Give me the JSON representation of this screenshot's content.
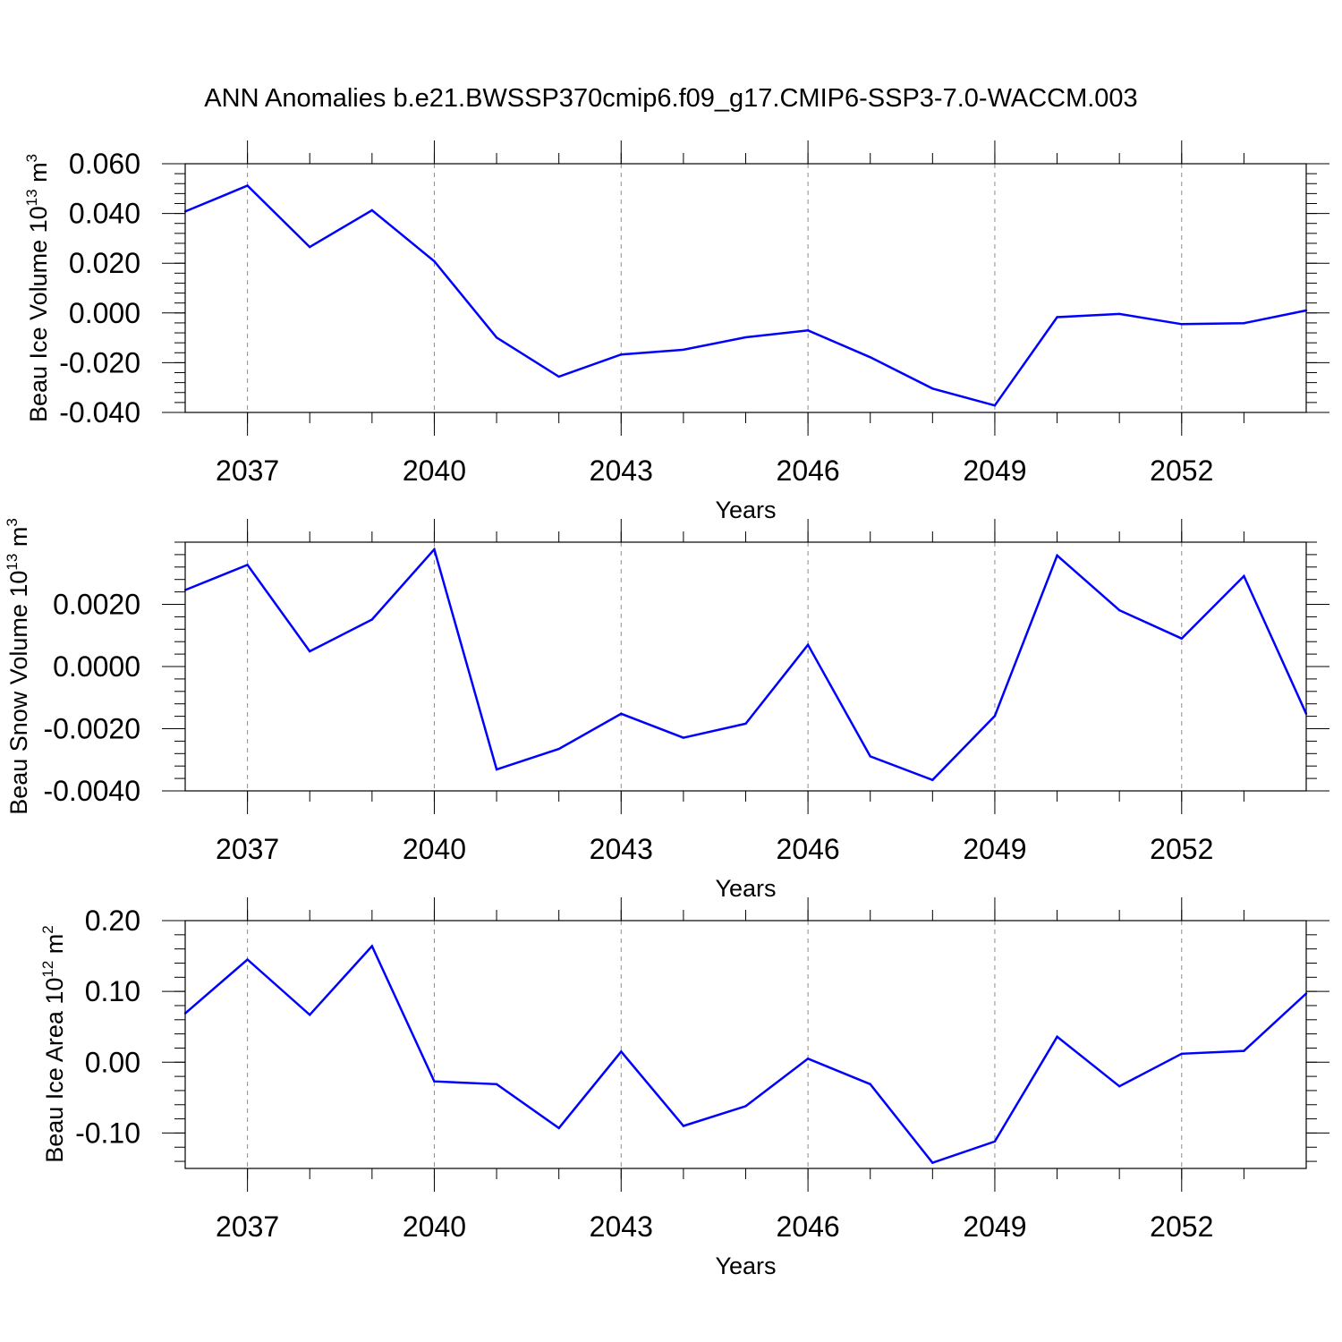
{
  "title": "ANN Anomalies b.e21.BWSSP370cmip6.f09_g17.CMIP6-SSP3-7.0-WACCM.003",
  "colors": {
    "line": "#0000ff",
    "axis": "#000000",
    "grid": "#8c8c8c"
  },
  "chart_data": [
    {
      "type": "line",
      "ylabel": {
        "main": "Beau Ice Volume 10",
        "sup": "13",
        "unit": " m",
        "unit_sup": "3"
      },
      "xlabel": "Years",
      "xlim": [
        2036,
        2054
      ],
      "ylim": [
        -0.04,
        0.06
      ],
      "yticks": [
        -0.04,
        -0.02,
        0.0,
        0.02,
        0.04,
        0.06
      ],
      "ytick_labels": [
        "-0.040",
        "-0.020",
        "0.000",
        "0.020",
        "0.040",
        "0.060"
      ],
      "xticks": [
        2037,
        2040,
        2043,
        2046,
        2049,
        2052
      ],
      "xtick_labels": [
        "2037",
        "2040",
        "2043",
        "2046",
        "2049",
        "2052"
      ],
      "grid": "vertical dashed at labeled years",
      "x": [
        2036,
        2037,
        2038,
        2039,
        2040,
        2041,
        2042,
        2043,
        2044,
        2045,
        2046,
        2047,
        2048,
        2049,
        2050,
        2051,
        2052,
        2053,
        2054
      ],
      "values": [
        0.0408,
        0.0512,
        0.0265,
        0.0413,
        0.0208,
        -0.0099,
        -0.0256,
        -0.0167,
        -0.0148,
        -0.0098,
        -0.007,
        -0.0178,
        -0.0304,
        -0.0372,
        -0.0017,
        -0.0004,
        -0.0045,
        -0.0041,
        0.001
      ]
    },
    {
      "type": "line",
      "ylabel": {
        "main": "Beau Snow Volume 10",
        "sup": "13",
        "unit": " m",
        "unit_sup": "3"
      },
      "xlabel": "Years",
      "xlim": [
        2036,
        2054
      ],
      "ylim": [
        -0.004,
        0.004
      ],
      "yticks": [
        -0.004,
        -0.002,
        0.0,
        0.002
      ],
      "ytick_labels": [
        "-0.0040",
        "-0.0020",
        "0.0000",
        "0.0020"
      ],
      "xticks": [
        2037,
        2040,
        2043,
        2046,
        2049,
        2052
      ],
      "xtick_labels": [
        "2037",
        "2040",
        "2043",
        "2046",
        "2049",
        "2052"
      ],
      "grid": "vertical dashed at labeled years",
      "x": [
        2036,
        2037,
        2038,
        2039,
        2040,
        2041,
        2042,
        2043,
        2044,
        2045,
        2046,
        2047,
        2048,
        2049,
        2050,
        2051,
        2052,
        2053,
        2054
      ],
      "values": [
        0.00246,
        0.00327,
        0.00049,
        0.00151,
        0.00377,
        -0.00331,
        -0.00265,
        -0.00152,
        -0.00229,
        -0.00184,
        0.0007,
        -0.00289,
        -0.00365,
        -0.00159,
        0.00357,
        0.00181,
        0.0009,
        0.00291,
        -0.00152
      ]
    },
    {
      "type": "line",
      "ylabel": {
        "main": "Beau Ice Area 10",
        "sup": "12",
        "unit": " m",
        "unit_sup": "2"
      },
      "xlabel": "Years",
      "xlim": [
        2036,
        2054
      ],
      "ylim": [
        -0.15,
        0.2
      ],
      "yticks": [
        -0.1,
        0.0,
        0.1,
        0.2
      ],
      "ytick_labels": [
        "-0.10",
        "0.00",
        "0.10",
        "0.20"
      ],
      "xticks": [
        2037,
        2040,
        2043,
        2046,
        2049,
        2052
      ],
      "xtick_labels": [
        "2037",
        "2040",
        "2043",
        "2046",
        "2049",
        "2052"
      ],
      "grid": "vertical dashed at labeled years",
      "x": [
        2036,
        2037,
        2038,
        2039,
        2040,
        2041,
        2042,
        2043,
        2044,
        2045,
        2046,
        2047,
        2048,
        2049,
        2050,
        2051,
        2052,
        2053,
        2054
      ],
      "values": [
        0.069,
        0.145,
        0.067,
        0.164,
        -0.027,
        -0.031,
        -0.093,
        0.015,
        -0.09,
        -0.062,
        0.005,
        -0.031,
        -0.142,
        -0.112,
        0.036,
        -0.034,
        0.012,
        0.016,
        0.097
      ]
    }
  ]
}
